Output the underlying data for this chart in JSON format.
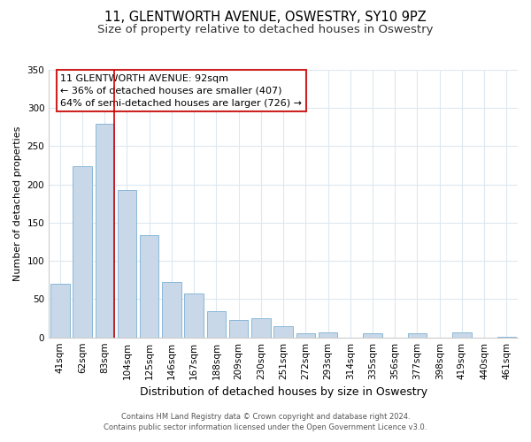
{
  "title": "11, GLENTWORTH AVENUE, OSWESTRY, SY10 9PZ",
  "subtitle": "Size of property relative to detached houses in Oswestry",
  "xlabel": "Distribution of detached houses by size in Oswestry",
  "ylabel": "Number of detached properties",
  "categories": [
    "41sqm",
    "62sqm",
    "83sqm",
    "104sqm",
    "125sqm",
    "146sqm",
    "167sqm",
    "188sqm",
    "209sqm",
    "230sqm",
    "251sqm",
    "272sqm",
    "293sqm",
    "314sqm",
    "335sqm",
    "356sqm",
    "377sqm",
    "398sqm",
    "419sqm",
    "440sqm",
    "461sqm"
  ],
  "values": [
    70,
    224,
    279,
    193,
    134,
    72,
    57,
    34,
    23,
    25,
    15,
    5,
    6,
    0,
    5,
    0,
    5,
    0,
    6,
    0,
    1
  ],
  "bar_color": "#c8d8e8",
  "bar_edge_color": "#8ab8d8",
  "highlight_line_color": "#cc0000",
  "highlight_line_index": 2,
  "ylim": [
    0,
    350
  ],
  "yticks": [
    0,
    50,
    100,
    150,
    200,
    250,
    300,
    350
  ],
  "annotation_title": "11 GLENTWORTH AVENUE: 92sqm",
  "annotation_line1": "← 36% of detached houses are smaller (407)",
  "annotation_line2": "64% of semi-detached houses are larger (726) →",
  "footer_line1": "Contains HM Land Registry data © Crown copyright and database right 2024.",
  "footer_line2": "Contains public sector information licensed under the Open Government Licence v3.0.",
  "background_color": "#ffffff",
  "grid_color": "#dde8f0",
  "title_fontsize": 10.5,
  "subtitle_fontsize": 9.5,
  "ylabel_fontsize": 8,
  "xlabel_fontsize": 9,
  "tick_fontsize": 7.5,
  "annot_fontsize": 8,
  "footer_fontsize": 6
}
